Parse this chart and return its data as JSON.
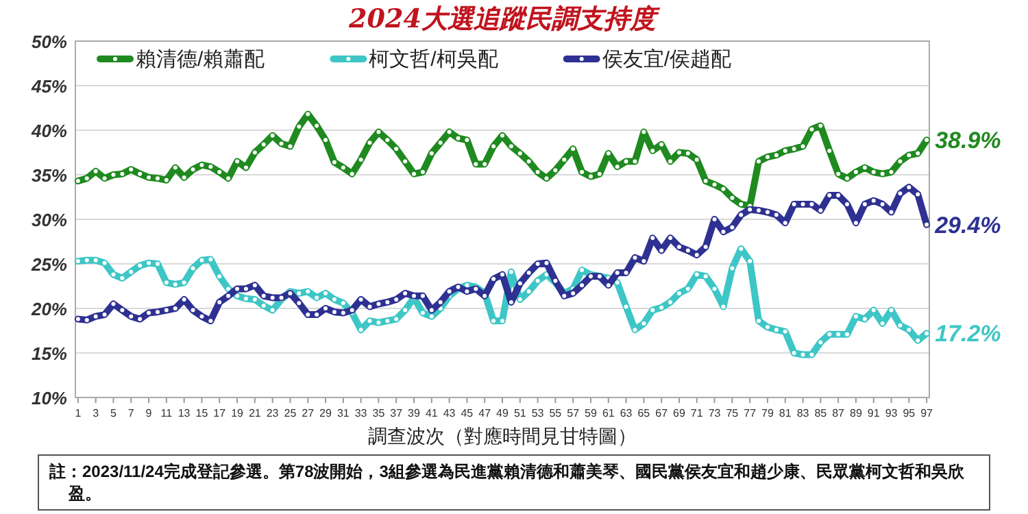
{
  "chart_data": {
    "type": "line",
    "title": "2024大選追蹤民調支持度",
    "xlabel": "調查波次（對應時間見甘特圖）",
    "annotations": [
      "註：2023/11/24完成登記參選。第78波開始，3組參選為民進黨賴清德和蕭美琴、國民黨侯友宜和趙少康、民眾黨柯文哲和吳欣盈。"
    ],
    "x": [
      1,
      2,
      3,
      4,
      5,
      6,
      7,
      8,
      9,
      10,
      11,
      12,
      13,
      14,
      15,
      16,
      17,
      18,
      19,
      20,
      21,
      22,
      23,
      24,
      25,
      26,
      27,
      28,
      29,
      30,
      31,
      32,
      33,
      34,
      35,
      36,
      37,
      38,
      39,
      40,
      41,
      42,
      43,
      44,
      45,
      46,
      47,
      48,
      49,
      50,
      51,
      52,
      53,
      54,
      55,
      56,
      57,
      58,
      59,
      60,
      61,
      62,
      63,
      64,
      65,
      66,
      67,
      68,
      69,
      70,
      71,
      72,
      73,
      74,
      75,
      76,
      77,
      78,
      79,
      80,
      81,
      82,
      83,
      84,
      85,
      86,
      87,
      88,
      89,
      90,
      91,
      92,
      93,
      94,
      95,
      96,
      97
    ],
    "series": [
      {
        "name": "賴清德/賴蕭配",
        "color": "#1f8a1f",
        "values": [
          34.3,
          34.6,
          35.4,
          34.6,
          35.0,
          35.1,
          35.6,
          35.1,
          34.7,
          34.6,
          34.4,
          35.8,
          34.7,
          35.6,
          36.1,
          35.9,
          35.3,
          34.6,
          36.5,
          35.8,
          37.5,
          38.4,
          39.4,
          38.5,
          38.2,
          40.4,
          41.8,
          40.5,
          38.9,
          36.4,
          35.8,
          35.1,
          36.7,
          38.6,
          39.8,
          38.9,
          37.9,
          36.5,
          35.1,
          35.3,
          37.4,
          38.6,
          39.8,
          39.1,
          38.9,
          36.2,
          36.2,
          38.2,
          39.4,
          38.2,
          37.4,
          36.5,
          35.3,
          34.6,
          35.5,
          36.7,
          37.9,
          35.3,
          34.8,
          35.1,
          37.4,
          35.9,
          36.5,
          36.5,
          39.8,
          37.7,
          38.4,
          36.5,
          37.5,
          37.4,
          36.7,
          34.3,
          33.9,
          33.4,
          32.4,
          31.7,
          31.5,
          36.5,
          37.0,
          37.2,
          37.7,
          37.9,
          38.2,
          40.1,
          40.5,
          37.7,
          35.1,
          34.6,
          35.3,
          35.8,
          35.3,
          35.1,
          35.3,
          36.5,
          37.2,
          37.4,
          38.9
        ],
        "value_labels": [
          null,
          null,
          null,
          null,
          null,
          null,
          null,
          null,
          null,
          null,
          null,
          null,
          null,
          null,
          null,
          null,
          null,
          null,
          null,
          null,
          null,
          null,
          null,
          null,
          null,
          null,
          null,
          null,
          null,
          null,
          null,
          null,
          null,
          null,
          null,
          null,
          null,
          null,
          null,
          null,
          null,
          null,
          null,
          null,
          null,
          null,
          null,
          null,
          null,
          null,
          null,
          null,
          null,
          null,
          null,
          null,
          null,
          null,
          null,
          null,
          null,
          null,
          null,
          null,
          null,
          null,
          null,
          null,
          null,
          null,
          null,
          null,
          null,
          null,
          null,
          null,
          null,
          null,
          null,
          null,
          null,
          null,
          null,
          null,
          null,
          null,
          null,
          null,
          null,
          null,
          null,
          null,
          null,
          null,
          null,
          null,
          "38.9%"
        ]
      },
      {
        "name": "柯文哲/柯吳配",
        "color": "#3ec6c6",
        "values": [
          25.3,
          25.4,
          25.4,
          25.1,
          23.8,
          23.4,
          24.1,
          24.8,
          25.1,
          25.0,
          22.9,
          22.7,
          22.9,
          24.5,
          25.4,
          25.5,
          23.6,
          22.2,
          21.4,
          21.1,
          21.0,
          20.3,
          19.8,
          21.0,
          21.9,
          21.7,
          21.9,
          21.2,
          21.7,
          21.0,
          20.6,
          19.5,
          17.6,
          18.6,
          18.4,
          18.6,
          18.8,
          19.8,
          21.2,
          19.5,
          19.1,
          20.0,
          21.4,
          22.2,
          22.6,
          22.4,
          21.7,
          18.6,
          18.6,
          24.1,
          21.0,
          21.9,
          23.1,
          23.8,
          22.9,
          21.7,
          22.2,
          24.3,
          23.8,
          23.6,
          23.4,
          22.9,
          20.2,
          17.6,
          18.3,
          19.8,
          20.1,
          20.7,
          21.7,
          22.2,
          23.8,
          23.6,
          22.2,
          20.2,
          24.5,
          26.7,
          25.3,
          18.6,
          17.9,
          17.6,
          17.4,
          15.0,
          14.8,
          14.8,
          16.2,
          17.1,
          17.1,
          17.1,
          19.1,
          18.8,
          19.8,
          18.3,
          19.8,
          18.1,
          17.6,
          16.4,
          17.2
        ],
        "value_labels": [
          null,
          null,
          null,
          null,
          null,
          null,
          null,
          null,
          null,
          null,
          null,
          null,
          null,
          null,
          null,
          null,
          null,
          null,
          null,
          null,
          null,
          null,
          null,
          null,
          null,
          null,
          null,
          null,
          null,
          null,
          null,
          null,
          null,
          null,
          null,
          null,
          null,
          null,
          null,
          null,
          null,
          null,
          null,
          null,
          null,
          null,
          null,
          null,
          null,
          null,
          null,
          null,
          null,
          null,
          null,
          null,
          null,
          null,
          null,
          null,
          null,
          null,
          null,
          null,
          null,
          null,
          null,
          null,
          null,
          null,
          null,
          null,
          null,
          null,
          null,
          null,
          null,
          null,
          null,
          null,
          null,
          null,
          null,
          null,
          null,
          null,
          null,
          null,
          null,
          null,
          null,
          null,
          null,
          null,
          null,
          null,
          "17.2%"
        ]
      },
      {
        "name": "侯友宜/侯趙配",
        "color": "#2e3192",
        "values": [
          18.8,
          18.7,
          19.1,
          19.3,
          20.5,
          19.8,
          19.1,
          18.8,
          19.5,
          19.6,
          19.8,
          20.0,
          21.0,
          19.8,
          19.1,
          18.6,
          20.7,
          21.4,
          22.2,
          22.2,
          22.6,
          21.4,
          21.2,
          21.2,
          21.7,
          20.6,
          19.3,
          19.3,
          20.0,
          19.6,
          19.5,
          19.8,
          21.0,
          20.2,
          20.5,
          20.7,
          21.0,
          21.7,
          21.4,
          21.4,
          19.8,
          20.7,
          21.9,
          22.4,
          21.9,
          22.2,
          21.4,
          23.3,
          23.8,
          20.7,
          22.8,
          24.0,
          25.0,
          25.1,
          23.1,
          21.4,
          21.7,
          22.6,
          23.6,
          23.6,
          22.6,
          24.0,
          24.0,
          25.7,
          25.3,
          27.9,
          26.5,
          27.9,
          26.9,
          26.5,
          26.0,
          26.9,
          30.0,
          28.6,
          29.1,
          30.5,
          31.1,
          31.0,
          30.8,
          30.5,
          29.6,
          31.7,
          31.7,
          31.7,
          31.0,
          32.7,
          32.7,
          31.7,
          29.6,
          31.7,
          32.1,
          31.7,
          30.8,
          32.9,
          33.6,
          32.8,
          29.4
        ],
        "value_labels": [
          null,
          null,
          null,
          null,
          null,
          null,
          null,
          null,
          null,
          null,
          null,
          null,
          null,
          null,
          null,
          null,
          null,
          null,
          null,
          null,
          null,
          null,
          null,
          null,
          null,
          null,
          null,
          null,
          null,
          null,
          null,
          null,
          null,
          null,
          null,
          null,
          null,
          null,
          null,
          null,
          null,
          null,
          null,
          null,
          null,
          null,
          null,
          null,
          null,
          null,
          null,
          null,
          null,
          null,
          null,
          null,
          null,
          null,
          null,
          null,
          null,
          null,
          null,
          null,
          null,
          null,
          null,
          null,
          null,
          null,
          null,
          null,
          null,
          null,
          null,
          null,
          null,
          null,
          null,
          null,
          null,
          null,
          null,
          null,
          null,
          null,
          null,
          null,
          null,
          null,
          null,
          null,
          null,
          null,
          null,
          null,
          "29.4%"
        ]
      }
    ],
    "xlim": [
      0.7,
      97.3
    ],
    "xticks": [
      1,
      3,
      5,
      7,
      9,
      11,
      13,
      15,
      17,
      19,
      21,
      23,
      25,
      27,
      29,
      31,
      33,
      35,
      37,
      39,
      41,
      43,
      45,
      47,
      49,
      51,
      53,
      55,
      57,
      59,
      61,
      63,
      65,
      67,
      69,
      71,
      73,
      75,
      77,
      79,
      81,
      83,
      85,
      87,
      89,
      91,
      93,
      95,
      97
    ],
    "ylim": [
      10,
      50
    ],
    "yticks": [
      {
        "value": 10,
        "label": "10%"
      },
      {
        "value": 15,
        "label": "15%"
      },
      {
        "value": 20,
        "label": "20%"
      },
      {
        "value": 25,
        "label": "25%"
      },
      {
        "value": 30,
        "label": "30%"
      },
      {
        "value": 35,
        "label": "35%"
      },
      {
        "value": 40,
        "label": "40%"
      },
      {
        "value": 45,
        "label": "45%"
      },
      {
        "value": 50,
        "label": "50%"
      }
    ],
    "grid": "y",
    "legend": "top",
    "marker": "circle",
    "line_style": "solid"
  }
}
